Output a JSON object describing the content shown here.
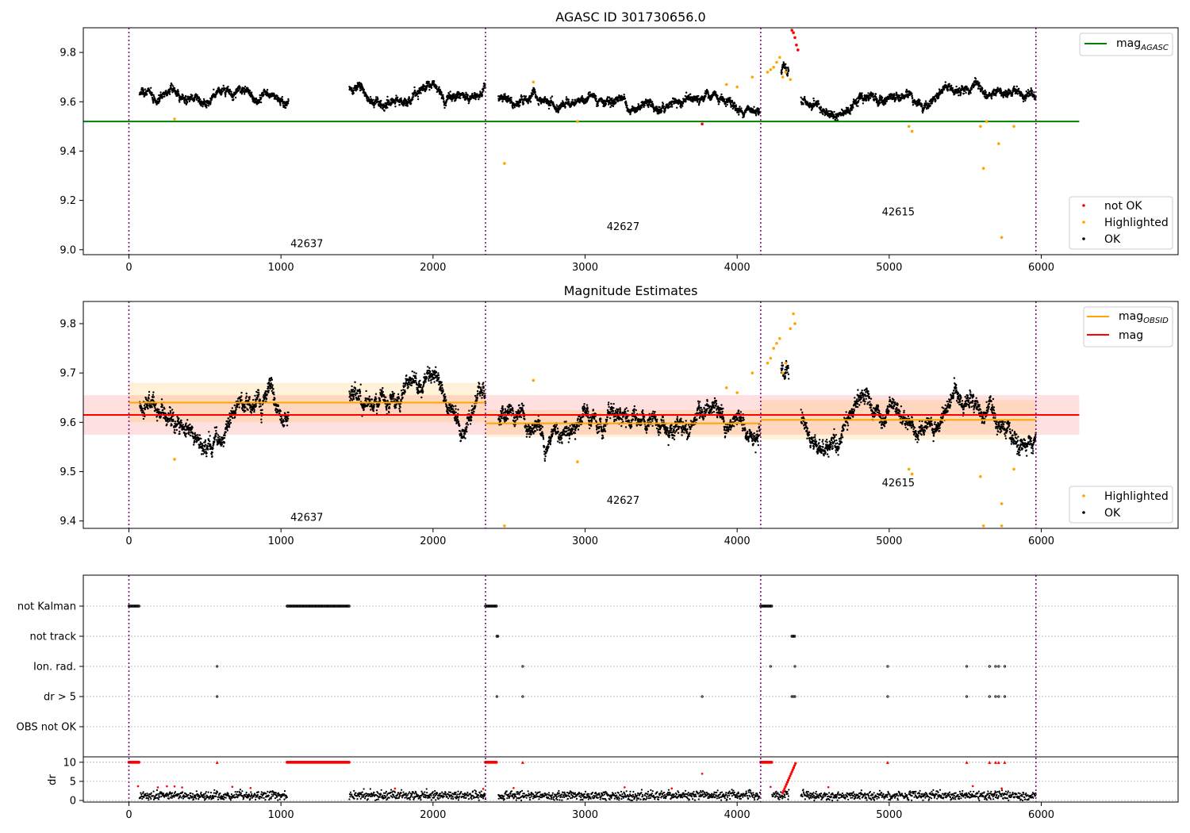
{
  "chart_data": [
    {
      "type": "scatter",
      "title": "AGASC ID 301730656.0",
      "xlim": [
        -300,
        6900
      ],
      "ylim": [
        8.98,
        9.9
      ],
      "xticks": [
        0,
        1000,
        2000,
        3000,
        4000,
        5000,
        6000
      ],
      "yticks": [
        9.0,
        9.2,
        9.4,
        9.6,
        9.8
      ],
      "obsid_boundaries": [
        0,
        2345,
        4155,
        5965
      ],
      "obsid_labels": [
        {
          "text": "42637",
          "x": 1170,
          "y": 9.01
        },
        {
          "text": "42627",
          "x": 3250,
          "y": 9.08
        },
        {
          "text": "42615",
          "x": 5060,
          "y": 9.14
        }
      ],
      "lines": [
        {
          "name": "mag_AGASC",
          "color": "#008000",
          "x": [
            -300,
            6250
          ],
          "y": [
            9.52,
            9.52
          ]
        }
      ],
      "legend_lines": {
        "main": "mag",
        "sub": "AGASC",
        "color": "#008000"
      },
      "legend_points": [
        {
          "label": "not OK",
          "color": "#ff0000"
        },
        {
          "label": "Highlighted",
          "color": "#ffa500"
        },
        {
          "label": "OK",
          "color": "#000000"
        }
      ],
      "series": [
        {
          "name": "OK",
          "color": "#000000",
          "segments": [
            {
              "x0": 70,
              "x1": 1050,
              "base": 9.625,
              "amp": 0.045
            },
            {
              "x0": 1450,
              "x1": 2345,
              "base": 9.64,
              "amp": 0.05
            },
            {
              "x0": 2430,
              "x1": 4150,
              "base": 9.6,
              "amp": 0.03
            },
            {
              "x0": 4290,
              "x1": 4340,
              "base": 9.7,
              "amp": 0.03
            },
            {
              "x0": 4420,
              "x1": 5965,
              "base": 9.6,
              "amp": 0.035
            }
          ]
        },
        {
          "name": "Highlighted",
          "color": "#ffa500",
          "points": [
            [
              300,
              9.53
            ],
            [
              2470,
              9.35
            ],
            [
              2660,
              9.68
            ],
            [
              2950,
              9.52
            ],
            [
              3930,
              9.67
            ],
            [
              4200,
              9.72
            ],
            [
              4220,
              9.73
            ],
            [
              4240,
              9.74
            ],
            [
              4260,
              9.76
            ],
            [
              4280,
              9.78
            ],
            [
              4300,
              9.7
            ],
            [
              4320,
              9.72
            ],
            [
              4350,
              9.69
            ],
            [
              4000,
              9.66
            ],
            [
              4100,
              9.7
            ],
            [
              5130,
              9.5
            ],
            [
              5150,
              9.48
            ],
            [
              5600,
              9.5
            ],
            [
              5620,
              9.33
            ],
            [
              5640,
              9.52
            ],
            [
              5720,
              9.43
            ],
            [
              5740,
              9.05
            ],
            [
              5820,
              9.5
            ]
          ]
        },
        {
          "name": "not OK",
          "color": "#ff0000",
          "points": [
            [
              3770,
              9.51
            ],
            [
              4360,
              9.89
            ],
            [
              4370,
              9.88
            ],
            [
              4380,
              9.86
            ],
            [
              4390,
              9.83
            ],
            [
              4400,
              9.81
            ]
          ]
        }
      ]
    },
    {
      "type": "scatter",
      "title": "Magnitude Estimates",
      "xlim": [
        -300,
        6900
      ],
      "ylim": [
        9.385,
        9.845
      ],
      "xticks": [
        0,
        1000,
        2000,
        3000,
        4000,
        5000,
        6000
      ],
      "yticks": [
        9.4,
        9.5,
        9.6,
        9.7,
        9.8
      ],
      "obsid_boundaries": [
        0,
        2345,
        4155,
        5965
      ],
      "obsid_labels": [
        {
          "text": "42637",
          "x": 1170,
          "y": 9.4
        },
        {
          "text": "42627",
          "x": 3250,
          "y": 9.435
        },
        {
          "text": "42615",
          "x": 5060,
          "y": 9.47
        }
      ],
      "bands": [
        {
          "color": "#ff0000",
          "opacity": 0.12,
          "x0": -300,
          "x1": 6250,
          "y0": 9.575,
          "y1": 9.655
        },
        {
          "color": "#ffa500",
          "opacity": 0.15,
          "x0": 0,
          "x1": 2345,
          "y0": 9.6,
          "y1": 9.68
        },
        {
          "color": "#ffa500",
          "opacity": 0.15,
          "x0": 2345,
          "x1": 4155,
          "y0": 9.57,
          "y1": 9.625
        },
        {
          "color": "#ffa500",
          "opacity": 0.15,
          "x0": 4155,
          "x1": 5965,
          "y0": 9.565,
          "y1": 9.645
        }
      ],
      "lines": [
        {
          "name": "mag_OBSID",
          "color": "#ffa500",
          "x": [
            0,
            2345
          ],
          "y": [
            9.64,
            9.64
          ]
        },
        {
          "name": "mag_OBSID",
          "color": "#ffa500",
          "x": [
            2345,
            4155
          ],
          "y": [
            9.598,
            9.598
          ]
        },
        {
          "name": "mag_OBSID",
          "color": "#ffa500",
          "x": [
            4155,
            5965
          ],
          "y": [
            9.605,
            9.605
          ]
        },
        {
          "name": "mag",
          "color": "#ff0000",
          "x": [
            -300,
            6250
          ],
          "y": [
            9.615,
            9.615
          ]
        }
      ],
      "legend_lines": [
        {
          "main": "mag",
          "sub": "OBSID",
          "color": "#ffa500"
        },
        {
          "main": "mag",
          "sub": "",
          "color": "#ff0000"
        }
      ],
      "legend_points": [
        {
          "label": "Highlighted",
          "color": "#ffa500"
        },
        {
          "label": "OK",
          "color": "#000000"
        }
      ],
      "series": [
        {
          "name": "OK",
          "color": "#000000",
          "segments": [
            {
              "x0": 70,
              "x1": 1050,
              "base": 9.625,
              "amp": 0.045
            },
            {
              "x0": 1450,
              "x1": 2345,
              "base": 9.64,
              "amp": 0.05
            },
            {
              "x0": 2430,
              "x1": 4150,
              "base": 9.6,
              "amp": 0.03
            },
            {
              "x0": 4290,
              "x1": 4340,
              "base": 9.69,
              "amp": 0.02
            },
            {
              "x0": 4420,
              "x1": 5965,
              "base": 9.6,
              "amp": 0.035
            }
          ]
        },
        {
          "name": "Highlighted",
          "color": "#ffa500",
          "points": [
            [
              300,
              9.525
            ],
            [
              2470,
              9.39
            ],
            [
              2660,
              9.685
            ],
            [
              2950,
              9.52
            ],
            [
              3930,
              9.67
            ],
            [
              4200,
              9.72
            ],
            [
              4220,
              9.73
            ],
            [
              4240,
              9.75
            ],
            [
              4260,
              9.76
            ],
            [
              4280,
              9.77
            ],
            [
              4300,
              9.7
            ],
            [
              4320,
              9.72
            ],
            [
              4350,
              9.79
            ],
            [
              4370,
              9.82
            ],
            [
              4380,
              9.8
            ],
            [
              4000,
              9.66
            ],
            [
              4100,
              9.7
            ],
            [
              5130,
              9.505
            ],
            [
              5150,
              9.495
            ],
            [
              5600,
              9.49
            ],
            [
              5620,
              9.39
            ],
            [
              5740,
              9.435
            ],
            [
              5740,
              9.39
            ],
            [
              5820,
              9.505
            ]
          ]
        }
      ]
    },
    {
      "type": "scatter",
      "xlim": [
        -300,
        6900
      ],
      "xticks": [
        0,
        1000,
        2000,
        3000,
        4000,
        5000,
        6000
      ],
      "obsid_boundaries": [
        0,
        2345,
        4155,
        5965
      ],
      "flag_rows": [
        "not Kalman",
        "not track",
        "Ion. rad.",
        "dr > 5",
        "OBS not OK"
      ],
      "flag_points": {
        "not Kalman": [
          [
            0,
            70
          ],
          [
            1040,
            1450
          ],
          [
            2345,
            2420
          ],
          [
            4155,
            4230
          ]
        ],
        "not track": [
          [
            2420,
            2430
          ],
          [
            4360,
            4380
          ]
        ],
        "Ion. rad.": [
          580,
          2590,
          4220,
          4380,
          4990,
          5510,
          5660,
          5700,
          5720,
          5760
        ],
        "dr > 5": [
          580,
          2420,
          2590,
          3770,
          4360,
          4370,
          4380,
          4990,
          5510,
          5660,
          5700,
          5720,
          5760
        ],
        "OBS not OK": []
      },
      "dr_panel": {
        "ylabel": "dr",
        "yticks": [
          0,
          5,
          10
        ],
        "ylim": [
          0,
          11
        ]
      }
    }
  ]
}
